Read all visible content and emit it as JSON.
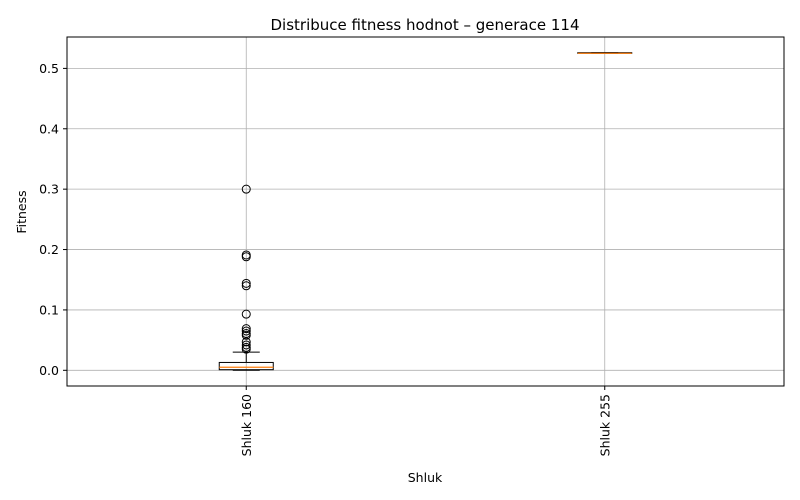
{
  "chart_data": {
    "type": "box",
    "title": "Distribuce fitness hodnot – generace 114",
    "xlabel": "Shluk",
    "ylabel": "Fitness",
    "ylim": [
      -0.026,
      0.552
    ],
    "yticks": [
      0.0,
      0.1,
      0.2,
      0.3,
      0.4,
      0.5
    ],
    "ytick_labels": [
      "0.0",
      "0.1",
      "0.2",
      "0.3",
      "0.4",
      "0.5"
    ],
    "grid": true,
    "categories": [
      "Shluk 160",
      "Shluk 255"
    ],
    "boxes": [
      {
        "name": "Shluk 160",
        "whisker_low": 0.0,
        "q1": 0.001,
        "median": 0.005,
        "q3": 0.013,
        "whisker_high": 0.03,
        "outliers": [
          0.3,
          0.191,
          0.188,
          0.144,
          0.14,
          0.093,
          0.069,
          0.065,
          0.061,
          0.058,
          0.047,
          0.042,
          0.038,
          0.035
        ]
      },
      {
        "name": "Shluk 255",
        "whisker_low": 0.525,
        "q1": 0.525,
        "median": 0.525,
        "q3": 0.526,
        "whisker_high": 0.526,
        "outliers": []
      }
    ],
    "colors": {
      "box": "#000000",
      "median": "#ff7f0e",
      "grid": "#b0b0b0"
    }
  }
}
